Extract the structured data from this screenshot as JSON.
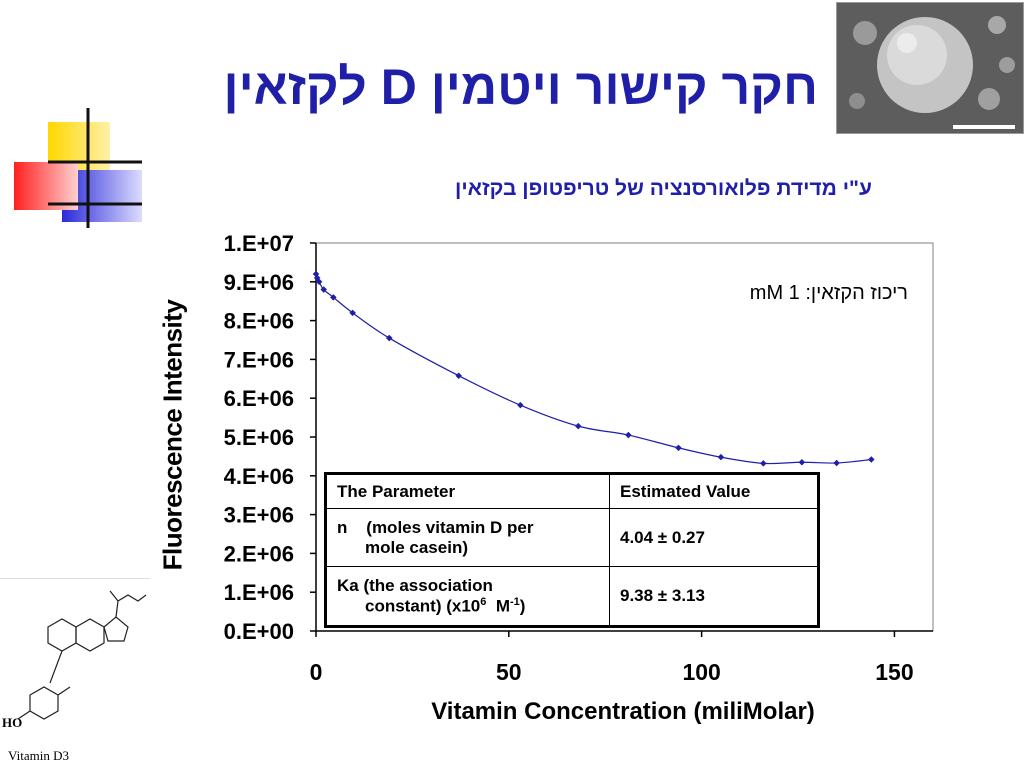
{
  "slide": {
    "title": "חקר קישור ויטמין D לקזאין",
    "subtitle": "ע\"י מדידת פלואורסנציה של טריפטופן בקזאין",
    "concentration_note": "ריכוז הקזאין: 1 mM"
  },
  "chem": {
    "label": "Vitamin D3"
  },
  "chart_data": {
    "type": "scatter",
    "xlabel": "Vitamin Concentration (miliMolar)",
    "ylabel": "Fluorescence Intensity",
    "xlim": [
      0,
      160
    ],
    "ylim": [
      0,
      10000000
    ],
    "x_ticks": [
      "0",
      "50",
      "100",
      "150"
    ],
    "x_tick_values": [
      0,
      50,
      100,
      150
    ],
    "y_ticks": [
      "0.E+00",
      "1.E+06",
      "2.E+06",
      "3.E+06",
      "4.E+06",
      "5.E+06",
      "6.E+06",
      "7.E+06",
      "8.E+06",
      "9.E+06",
      "1.E+07"
    ],
    "y_tick_values": [
      0,
      1000000,
      2000000,
      3000000,
      4000000,
      5000000,
      6000000,
      7000000,
      8000000,
      9000000,
      10000000
    ],
    "series": [
      {
        "x": [
          0,
          0.3,
          0.8,
          2,
          4.5,
          9.5,
          19,
          37,
          53,
          68,
          81,
          94,
          105,
          116,
          126,
          135,
          144
        ],
        "y": [
          9200000,
          9100000,
          9000000,
          8800000,
          8600000,
          8200000,
          7550000,
          6580000,
          5820000,
          5280000,
          5050000,
          4720000,
          4480000,
          4320000,
          4350000,
          4330000,
          4420000
        ]
      }
    ],
    "grid": false,
    "color": "#1f1fa8"
  },
  "table": {
    "header": [
      "The Parameter",
      "Estimated Value"
    ],
    "rows": [
      {
        "param_main": "n    (moles vitamin D per",
        "param_cont": "mole casein)",
        "value": "4.04 ± 0.27"
      },
      {
        "param_main": "Ka (the association",
        "param_cont_pre": "constant) (x10",
        "sup1": "6",
        "mid": "  M",
        "sup2": "-1",
        "post": ")",
        "value": "9.38 ± 3.13"
      }
    ]
  },
  "colors": {
    "title": "#1f1fa8",
    "series": "#1f1fa8"
  }
}
